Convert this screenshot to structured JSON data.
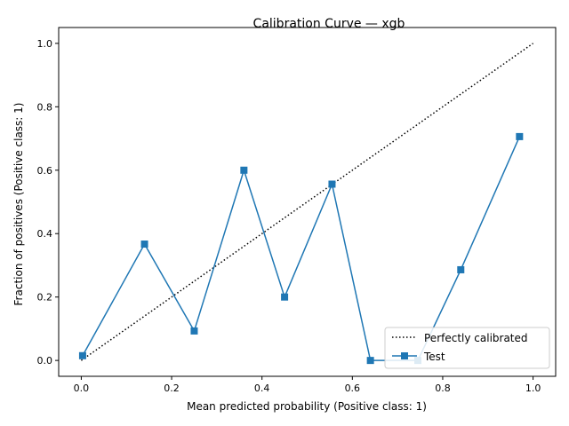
{
  "chart_data": {
    "type": "line",
    "title": "Calibration Curve — xgb",
    "xlabel": "Mean predicted probability (Positive class: 1)",
    "ylabel": "Fraction of positives (Positive class: 1)",
    "xlim": [
      -0.05,
      1.05
    ],
    "ylim": [
      -0.05,
      1.05
    ],
    "xticks": [
      "0.0",
      "0.2",
      "0.4",
      "0.6",
      "0.8",
      "1.0"
    ],
    "yticks": [
      "0.0",
      "0.2",
      "0.4",
      "0.6",
      "0.8",
      "1.0"
    ],
    "grid": false,
    "legend_position": "lower-right",
    "series": [
      {
        "name": "Perfectly calibrated",
        "style": "dotted",
        "color": "#000000",
        "x": [
          0.0,
          1.0
        ],
        "y": [
          0.0,
          1.0
        ]
      },
      {
        "name": "Test",
        "style": "solid-square-markers",
        "color": "#1f77b4",
        "x": [
          0.003,
          0.14,
          0.25,
          0.36,
          0.45,
          0.555,
          0.64,
          0.745,
          0.84,
          0.97
        ],
        "y": [
          0.015,
          0.367,
          0.093,
          0.6,
          0.2,
          0.556,
          0.0,
          0.0,
          0.286,
          0.706
        ]
      }
    ]
  }
}
